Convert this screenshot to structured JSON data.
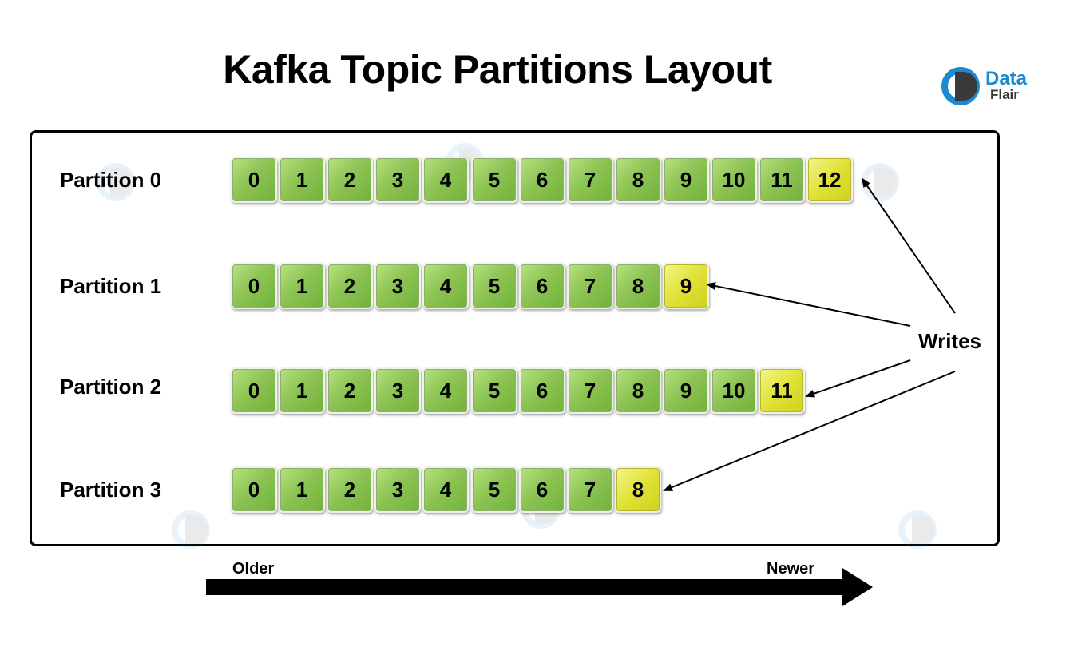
{
  "title": "Kafka Topic Partitions Layout",
  "logo": {
    "line1": "Data",
    "line2": "Flair"
  },
  "partitions": [
    {
      "label": "Partition 0",
      "offsets": [
        "0",
        "1",
        "2",
        "3",
        "4",
        "5",
        "6",
        "7",
        "8",
        "9",
        "10",
        "11",
        "12"
      ],
      "newest_offset": "12"
    },
    {
      "label": "Partition 1",
      "offsets": [
        "0",
        "1",
        "2",
        "3",
        "4",
        "5",
        "6",
        "7",
        "8",
        "9"
      ],
      "newest_offset": "9"
    },
    {
      "label": "Partition 2",
      "offsets": [
        "0",
        "1",
        "2",
        "3",
        "4",
        "5",
        "6",
        "7",
        "8",
        "9",
        "10",
        "11"
      ],
      "newest_offset": "11"
    },
    {
      "label": "Partition 3",
      "offsets": [
        "0",
        "1",
        "2",
        "3",
        "4",
        "5",
        "6",
        "7",
        "8"
      ],
      "newest_offset": "8"
    }
  ],
  "writes_label": "Writes",
  "timeline": {
    "older": "Older",
    "newer": "Newer"
  },
  "colors": {
    "record": "#8dc454",
    "newest_record": "#dfe235",
    "logo_blue": "#1c8ad1",
    "logo_dark": "#3a3a3a"
  }
}
